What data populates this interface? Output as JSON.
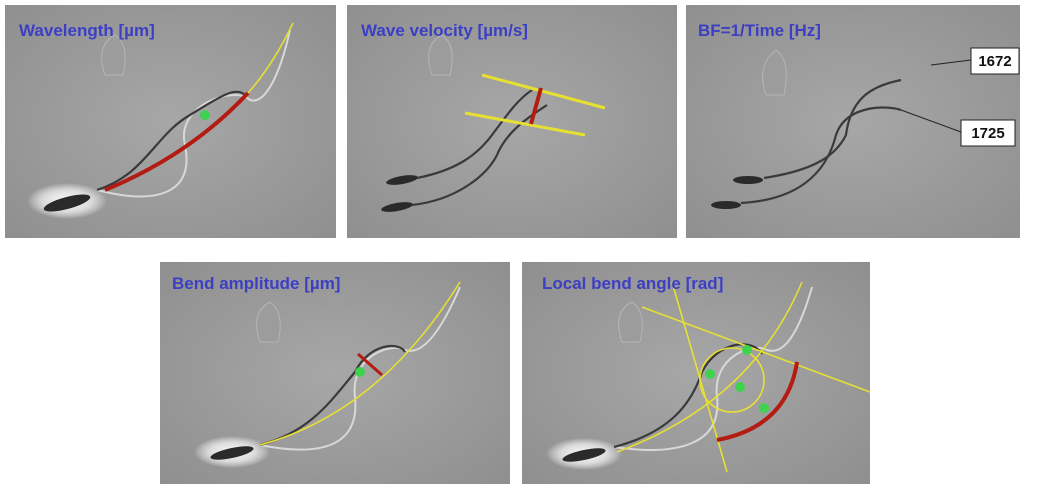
{
  "panels": [
    {
      "title": "Wavelength [µm]"
    },
    {
      "title": "Wave velocity [µm/s]"
    },
    {
      "title": "BF=1/Time [Hz]",
      "labels": [
        "1672",
        "1725"
      ]
    },
    {
      "title": "Bend amplitude [µm]"
    },
    {
      "title": "Local bend angle [rad]"
    }
  ]
}
